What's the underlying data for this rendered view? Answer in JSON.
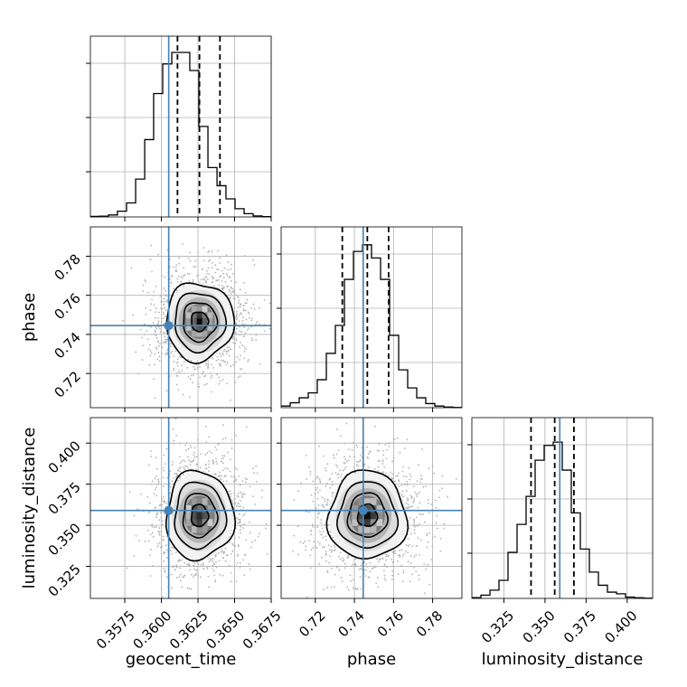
{
  "chart_data": {
    "type": "corner",
    "parameters": [
      "geocent_time",
      "phase",
      "luminosity_distance"
    ],
    "truths": {
      "geocent_time": 0.3605,
      "phase": 0.7445,
      "luminosity_distance": 0.359
    },
    "quantiles": {
      "geocent_time": [
        0.3611,
        0.3626,
        0.364
      ],
      "phase": [
        0.7338,
        0.7466,
        0.7575
      ],
      "luminosity_distance": [
        0.3415,
        0.3559,
        0.3676
      ]
    },
    "axes": {
      "geocent_time": {
        "label": "geocent_time",
        "range": [
          0.35515,
          0.3675
        ],
        "ticks": [
          0.3575,
          0.36,
          0.3625,
          0.365,
          0.3675
        ],
        "tick_labels": [
          "0.3575",
          "0.3600",
          "0.3625",
          "0.3650",
          "0.3675"
        ]
      },
      "phase": {
        "label": "phase",
        "range": [
          0.7025,
          0.795
        ],
        "ticks": [
          0.72,
          0.74,
          0.76,
          0.78
        ],
        "tick_labels": [
          "0.72",
          "0.74",
          "0.76",
          "0.78"
        ]
      },
      "luminosity_distance": {
        "label": "luminosity_distance",
        "range": [
          0.3055,
          0.4155
        ],
        "ticks": [
          0.325,
          0.35,
          0.375,
          0.4
        ],
        "tick_labels": [
          "0.325",
          "0.350",
          "0.375",
          "0.400"
        ]
      }
    },
    "histograms": {
      "geocent_time": {
        "edges": [
          0.35515,
          0.35577,
          0.35639,
          0.357,
          0.35762,
          0.35824,
          0.35886,
          0.35947,
          0.36009,
          0.36071,
          0.36133,
          0.36194,
          0.36256,
          0.36318,
          0.3638,
          0.36441,
          0.36503,
          0.36565,
          0.36627,
          0.36688,
          0.3675
        ],
        "counts": [
          0.003,
          0.005,
          0.012,
          0.035,
          0.085,
          0.23,
          0.47,
          0.75,
          0.93,
          1.0,
          1.0,
          0.89,
          0.55,
          0.3,
          0.19,
          0.11,
          0.05,
          0.02,
          0.006,
          0.002
        ]
      },
      "phase": {
        "edges": [
          0.7025,
          0.70713,
          0.71175,
          0.71638,
          0.721,
          0.72563,
          0.73025,
          0.73488,
          0.7395,
          0.74413,
          0.74875,
          0.75338,
          0.758,
          0.76263,
          0.76725,
          0.77188,
          0.7765,
          0.78113,
          0.78575,
          0.79038,
          0.795
        ],
        "counts": [
          0.01,
          0.03,
          0.06,
          0.09,
          0.17,
          0.33,
          0.5,
          0.78,
          0.95,
          0.99,
          0.91,
          0.78,
          0.44,
          0.23,
          0.12,
          0.06,
          0.025,
          0.01,
          0.004,
          0.001
        ]
      },
      "luminosity_distance": {
        "edges": [
          0.3055,
          0.311,
          0.3165,
          0.322,
          0.3275,
          0.333,
          0.3385,
          0.344,
          0.3495,
          0.355,
          0.3605,
          0.366,
          0.3715,
          0.377,
          0.3825,
          0.388,
          0.3935,
          0.399,
          0.4045,
          0.41,
          0.4155
        ],
        "counts": [
          0.005,
          0.02,
          0.05,
          0.11,
          0.28,
          0.45,
          0.62,
          0.84,
          0.93,
          0.95,
          0.78,
          0.52,
          0.3,
          0.16,
          0.08,
          0.038,
          0.028,
          0.008,
          0.004,
          0.001
        ]
      }
    },
    "correlations": {
      "phase|geocent_time": 0.0,
      "luminosity_distance|geocent_time": 0.0,
      "luminosity_distance|phase": 0.0
    },
    "posterior_spread": {
      "geocent_time": 0.0011,
      "phase": 0.0095,
      "luminosity_distance": 0.0128
    },
    "contour_levels_sigma": [
      0.5,
      1.0,
      1.5,
      2.0
    ],
    "grid": true,
    "colors": {
      "truth": "#4682b4",
      "contour": "#000000",
      "quantile": "#000000",
      "points": "#b3b3b3"
    }
  }
}
